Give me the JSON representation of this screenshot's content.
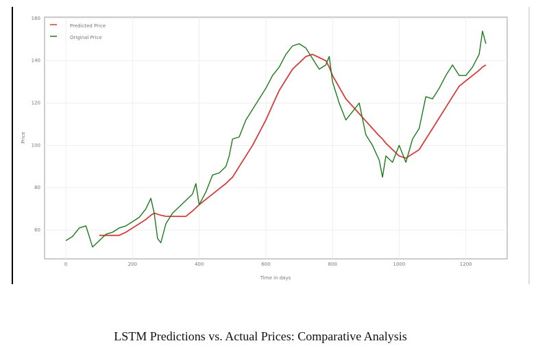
{
  "chart_data": {
    "type": "line",
    "xlabel": "Time in days",
    "ylabel": "Price",
    "x": [
      0,
      20,
      40,
      60,
      70,
      80,
      100,
      120,
      140,
      160,
      180,
      200,
      220,
      240,
      255,
      265,
      275,
      285,
      300,
      320,
      340,
      360,
      380,
      390,
      400,
      420,
      440,
      460,
      480,
      490,
      500,
      520,
      540,
      560,
      580,
      600,
      620,
      640,
      660,
      680,
      700,
      720,
      740,
      760,
      780,
      790,
      800,
      820,
      840,
      860,
      880,
      900,
      920,
      940,
      950,
      960,
      980,
      1000,
      1020,
      1040,
      1060,
      1080,
      1100,
      1120,
      1140,
      1160,
      1180,
      1200,
      1220,
      1240,
      1250,
      1260
    ],
    "series": [
      {
        "name": "Predicted Price",
        "color": "#d63a3a",
        "values": [
          null,
          null,
          null,
          null,
          null,
          null,
          57.5,
          57.5,
          57.5,
          57.5,
          59,
          61,
          63,
          65,
          67,
          68,
          67.5,
          67,
          66.5,
          66.5,
          66.5,
          66.5,
          69,
          70.5,
          72,
          74.5,
          77,
          79.5,
          82,
          83.5,
          85,
          90,
          95,
          100,
          106,
          112,
          119,
          126,
          131,
          136,
          139,
          142,
          143,
          141.5,
          140,
          137,
          133,
          127.5,
          122,
          118.5,
          115,
          111.5,
          108,
          104.5,
          103,
          101,
          98,
          95,
          94,
          96,
          98,
          103,
          108,
          113,
          118,
          123,
          128,
          130.5,
          133,
          135.5,
          137,
          138
        ]
      },
      {
        "name": "Original Price",
        "color": "#1a7a1a",
        "values": [
          55,
          57,
          61,
          62,
          57,
          52,
          55,
          58,
          59,
          61,
          62,
          64,
          66,
          70,
          75,
          68,
          56,
          54,
          63,
          68,
          71,
          74,
          77,
          82,
          72,
          78,
          86,
          87,
          90,
          95,
          103,
          104,
          112,
          117,
          122,
          127,
          133,
          137,
          143,
          147,
          148,
          146,
          141,
          136,
          138,
          142,
          130,
          120,
          112,
          116,
          120,
          105,
          100,
          93,
          85,
          95,
          92,
          100,
          92,
          103,
          108,
          123,
          122,
          127,
          133,
          138,
          133,
          133,
          137,
          143,
          154,
          148
        ]
      }
    ],
    "xlim": [
      -64,
      1324
    ],
    "ylim": [
      46.4,
      160.6
    ],
    "xticks": [
      0,
      200,
      400,
      600,
      800,
      1000,
      1200
    ],
    "yticks": [
      60,
      80,
      100,
      120,
      140,
      160
    ],
    "grid": true,
    "legend": "upper left"
  },
  "caption": "LSTM Predictions vs. Actual Prices: Comparative Analysis"
}
